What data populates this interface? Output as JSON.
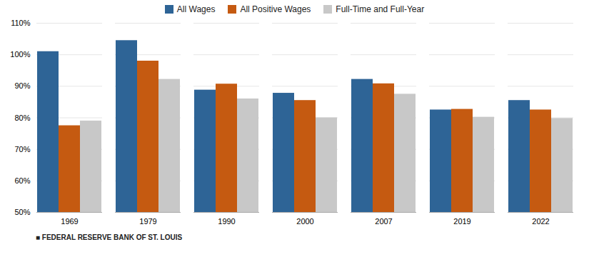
{
  "chart_data": {
    "type": "bar",
    "categories": [
      "1969",
      "1979",
      "1990",
      "2000",
      "2007",
      "2019",
      "2022"
    ],
    "series": [
      {
        "name": "All Wages",
        "color": "#2e6496",
        "values": [
          101.0,
          104.5,
          88.8,
          87.8,
          92.2,
          82.5,
          85.5
        ]
      },
      {
        "name": "All Positive Wages",
        "color": "#c55a11",
        "values": [
          77.5,
          98.0,
          90.7,
          85.5,
          90.8,
          82.7,
          82.5
        ]
      },
      {
        "name": "Full-Time and Full-Year",
        "color": "#c8c8c8",
        "values": [
          79.0,
          92.2,
          86.0,
          80.0,
          87.5,
          80.2,
          79.8
        ]
      }
    ],
    "ylim": [
      50,
      110
    ],
    "yticks": [
      {
        "value": 50,
        "label": "50%"
      },
      {
        "value": 60,
        "label": "60%"
      },
      {
        "value": 70,
        "label": "70%"
      },
      {
        "value": 80,
        "label": "80%"
      },
      {
        "value": 90,
        "label": "90%"
      },
      {
        "value": 100,
        "label": "100%"
      },
      {
        "value": 110,
        "label": "110%"
      }
    ],
    "grid": true,
    "legend": "top",
    "annotations": [
      "■ FEDERAL RESERVE BANK OF ST. LOUIS"
    ]
  }
}
